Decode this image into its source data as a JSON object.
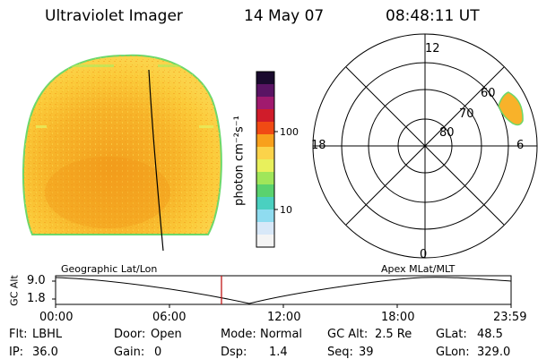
{
  "header": {
    "instrument": "Ultraviolet Imager",
    "date": "14 May 07",
    "time": "08:48:11 UT"
  },
  "colorbar": {
    "unit": "photon cm⁻²s⁻¹",
    "tick_labels": [
      "100",
      "10"
    ],
    "colors": [
      "#1a0a2e",
      "#5a1464",
      "#a01a6e",
      "#d01c2a",
      "#f04a14",
      "#f8a01c",
      "#fbd34a",
      "#e8f05c",
      "#a0e65a",
      "#5ad26e",
      "#4ad0c0",
      "#8fdcf0",
      "#d8e8f8",
      "#f4f4f4"
    ]
  },
  "polar_plot": {
    "mlt_labels": [
      "12",
      "18",
      "6",
      "0"
    ],
    "lat_labels": [
      "60",
      "70",
      "80"
    ]
  },
  "altitude_panel": {
    "left_label": "Geographic Lat/Lon",
    "right_label": "Apex MLat/MLT",
    "axis_label": "GC Alt",
    "y_ticks": [
      "9.0",
      "1.8"
    ],
    "time_ticks": [
      "00:00",
      "06:00",
      "12:00",
      "18:00",
      "23:59"
    ]
  },
  "status": {
    "flt_label": "Flt:",
    "flt_value": "LBHL",
    "ip_label": "IP:",
    "ip_value": "36.0",
    "door_label": "Door:",
    "door_value": "Open",
    "gain_label": "Gain:",
    "gain_value": "0",
    "mode_label": "Mode:",
    "mode_value": "Normal",
    "dsp_label": "Dsp:",
    "dsp_value": "1.4",
    "gcalt_label": "GC Alt:",
    "gcalt_value": "2.5 Re",
    "seq_label": "Seq:",
    "seq_value": "39",
    "glat_label": "GLat:",
    "glat_value": "48.5",
    "glon_label": "GLon:",
    "glon_value": "329.0"
  }
}
